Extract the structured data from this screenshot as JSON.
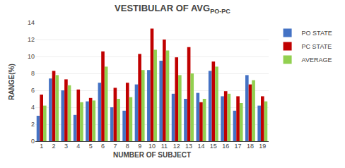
{
  "chart_data": {
    "type": "bar",
    "title": "VESTIBULAR OF AVG",
    "subtitle": "PO-PC",
    "xlabel": "NUMBER OF SUBJECT",
    "ylabel": "RANGE(%)",
    "categories": [
      "1",
      "2",
      "3",
      "4",
      "5",
      "6",
      "7",
      "8",
      "9",
      "10",
      "11",
      "12",
      "13",
      "14",
      "15",
      "16",
      "17",
      "18",
      "19"
    ],
    "series": [
      {
        "name": "PO STATE",
        "color": "#4472C4",
        "values": [
          3.0,
          7.4,
          6.0,
          3.1,
          4.7,
          6.9,
          4.0,
          3.6,
          6.7,
          8.4,
          9.5,
          5.6,
          5.0,
          5.7,
          8.3,
          5.3,
          3.6,
          7.8,
          4.2
        ]
      },
      {
        "name": "PC STATE",
        "color": "#C00000",
        "values": [
          5.5,
          8.3,
          7.3,
          6.1,
          5.1,
          10.6,
          6.3,
          6.9,
          10.3,
          13.3,
          12.0,
          9.9,
          11.1,
          4.6,
          9.4,
          5.9,
          5.3,
          6.7,
          5.3
        ]
      },
      {
        "name": "AVERAGE",
        "color": "#92D050",
        "values": [
          4.2,
          7.8,
          6.6,
          4.6,
          4.8,
          8.8,
          5.0,
          5.2,
          8.4,
          10.8,
          10.7,
          7.8,
          8.0,
          5.0,
          8.8,
          5.6,
          4.5,
          7.2,
          4.7
        ]
      }
    ],
    "ylim": [
      0,
      14
    ],
    "yticks": [
      0,
      2,
      4,
      6,
      8,
      10,
      12,
      14
    ],
    "grid": true,
    "legend": "right"
  }
}
